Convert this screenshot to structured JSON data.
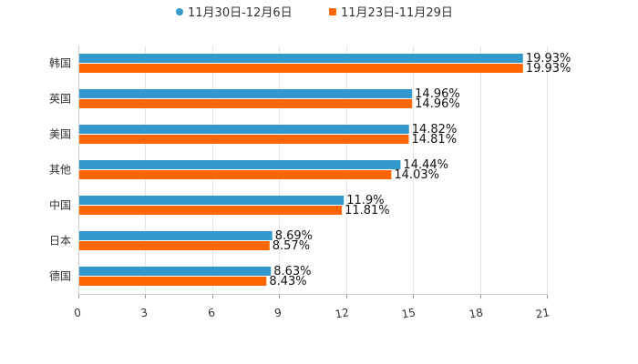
{
  "chart_data": {
    "type": "bar",
    "orientation": "horizontal",
    "categories": [
      "韩国",
      "英国",
      "美国",
      "其他",
      "中国",
      "日本",
      "德国"
    ],
    "series": [
      {
        "name": "11月30日-12月6日",
        "color": "#3399CC",
        "values": [
          19.93,
          14.96,
          14.82,
          14.44,
          11.9,
          8.69,
          8.63
        ],
        "labels": [
          "19.93%",
          "14.96%",
          "14.82%",
          "14.44%",
          "11.9%",
          "8.69%",
          "8.63%"
        ]
      },
      {
        "name": "11月23日-11月29日",
        "color": "#FF6600",
        "values": [
          19.93,
          14.96,
          14.81,
          14.03,
          11.81,
          8.57,
          8.43
        ],
        "labels": [
          "19.93%",
          "14.96%",
          "14.81%",
          "14.03%",
          "11.81%",
          "8.57%",
          "8.43%"
        ]
      }
    ],
    "xlim": [
      0,
      21
    ],
    "ticks": [
      "0",
      "3",
      "6",
      "9",
      "12",
      "15",
      "18",
      "21"
    ],
    "tick_values": [
      0,
      3,
      6,
      9,
      12,
      15,
      18,
      21
    ],
    "legend_position": "top-center",
    "grid": true
  }
}
